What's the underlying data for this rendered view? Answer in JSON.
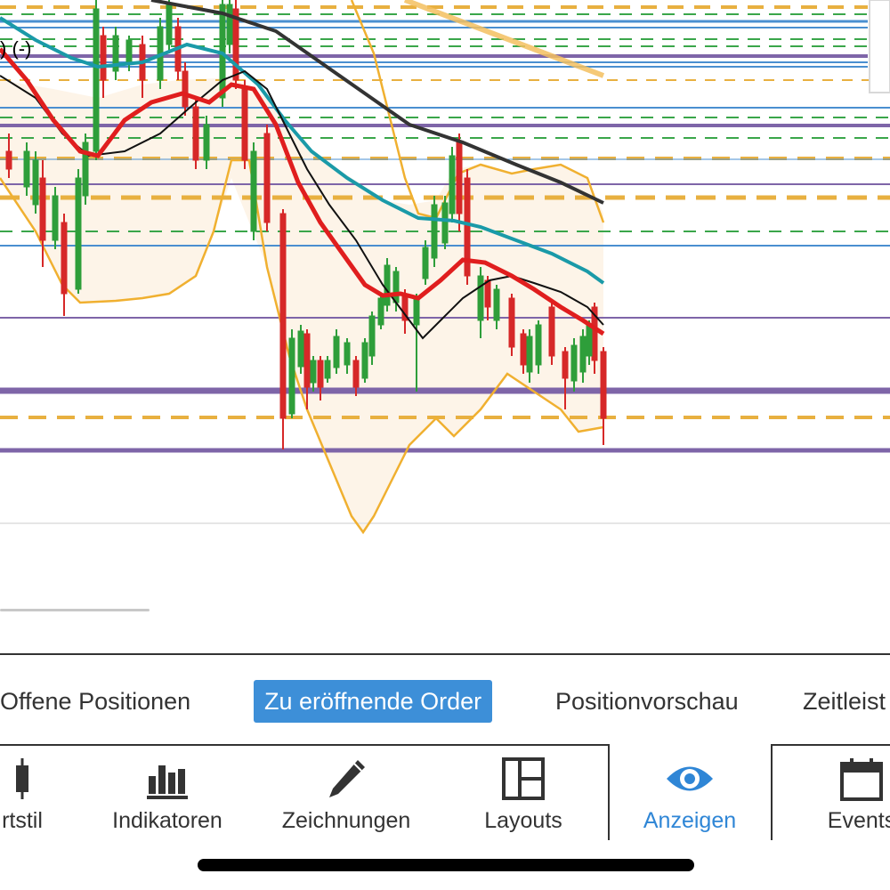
{
  "chart": {
    "legend_text": ") (-)",
    "colors": {
      "up_candle": "#2e9e3a",
      "down_candle": "#d62828",
      "ema_fast": "#e01e1e",
      "sma_slow": "#111111",
      "ema_teal": "#1a9aa8",
      "long_ma": "#333333",
      "bollinger": "#f0b030",
      "level_purple": "#7e65a8",
      "level_blue": "#4a8fd0",
      "level_orange_dashed": "#e8b040",
      "level_green_dashed": "#3aa64a"
    }
  },
  "tabs": [
    {
      "label": "Offene Positionen",
      "active": false
    },
    {
      "label": "Zu eröffnende Order",
      "active": true
    },
    {
      "label": "Positionvorschau",
      "active": false
    },
    {
      "label": "Zeitleist",
      "active": false
    }
  ],
  "toolbar": [
    {
      "label": "rtstil",
      "icon": "candlestick-icon",
      "active": false
    },
    {
      "label": "Indikatoren",
      "icon": "bar-chart-icon",
      "active": false
    },
    {
      "label": "Zeichnungen",
      "icon": "pencil-icon",
      "active": false
    },
    {
      "label": "Layouts",
      "icon": "layout-icon",
      "active": false
    },
    {
      "label": "Anzeigen",
      "icon": "eye-icon",
      "active": true
    },
    {
      "label": "Events",
      "icon": "calendar-icon",
      "active": false
    }
  ]
}
